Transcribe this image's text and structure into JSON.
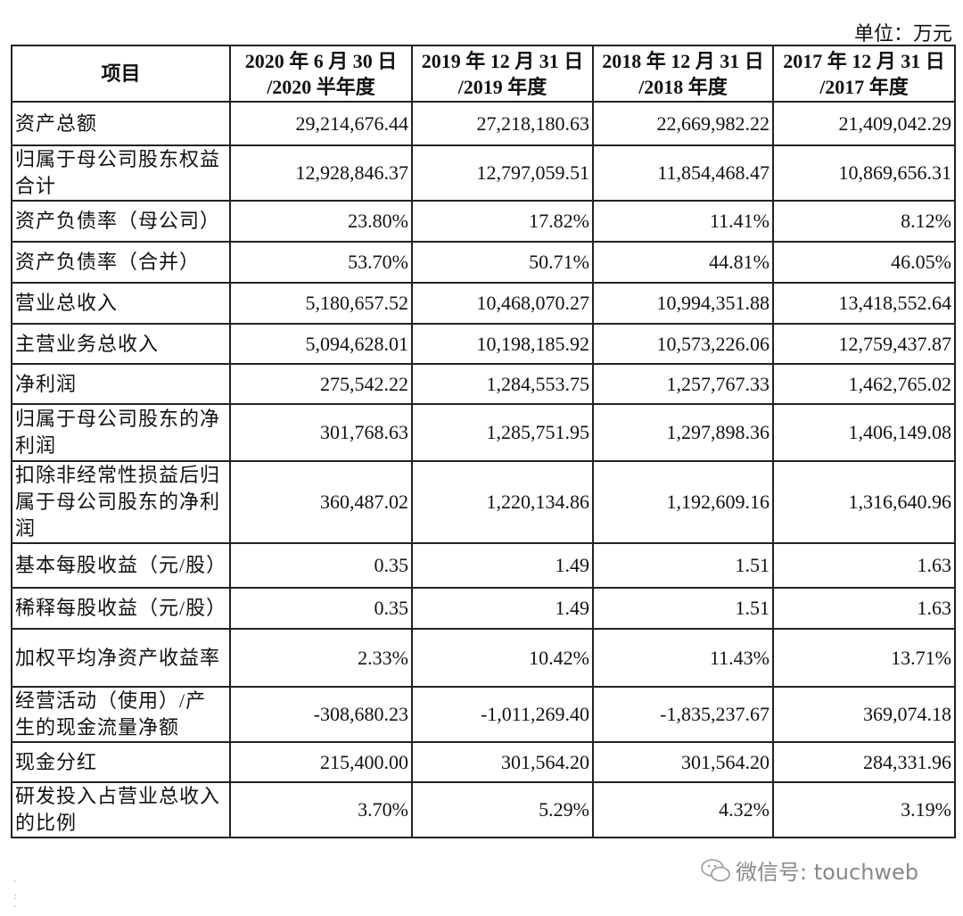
{
  "unit": "单位：万元",
  "header": [
    "项目",
    "2020 年 6 月 30 日 /2020 半年度",
    "2019 年 12 月 31 日 /2019 年度",
    "2018 年 12 月 31 日 /2018 年度",
    "2017 年 12 月 31 日 /2017 年度"
  ],
  "header_lines": [
    [
      "项目"
    ],
    [
      "2020 年 6 月 30 日",
      "/2020 半年度"
    ],
    [
      "2019 年 12 月 31 日",
      "/2019 年度"
    ],
    [
      "2018 年 12 月 31 日",
      "/2018 年度"
    ],
    [
      "2017 年 12 月 31 日",
      "/2017 年度"
    ]
  ],
  "rows": [
    {
      "label": "资产总额",
      "values": [
        "29,214,676.44",
        "27,218,180.63",
        "22,669,982.22",
        "21,409,042.29"
      ],
      "h": 51
    },
    {
      "label": "归属于母公司股东权益合计",
      "values": [
        "12,928,846.37",
        "12,797,059.51",
        "11,854,468.47",
        "10,869,656.31"
      ],
      "h": 60
    },
    {
      "label": "资产负债率（母公司）",
      "values": [
        "23.80%",
        "17.82%",
        "11.41%",
        "8.12%"
      ],
      "h": 48
    },
    {
      "label": "资产负债率（合并）",
      "values": [
        "53.70%",
        "50.71%",
        "44.81%",
        "46.05%"
      ],
      "h": 48
    },
    {
      "label": "营业总收入",
      "values": [
        "5,180,657.52",
        "10,468,070.27",
        "10,994,351.88",
        "13,418,552.64"
      ],
      "h": 48
    },
    {
      "label": "主营业务总收入",
      "values": [
        "5,094,628.01",
        "10,198,185.92",
        "10,573,226.06",
        "12,759,437.87"
      ],
      "h": 47
    },
    {
      "label": "净利润",
      "values": [
        "275,542.22",
        "1,284,553.75",
        "1,257,767.33",
        "1,462,765.02"
      ],
      "h": 47
    },
    {
      "label": "归属于母公司股东的净利润",
      "values": [
        "301,768.63",
        "1,285,751.95",
        "1,297,898.36",
        "1,406,149.08"
      ],
      "h": 66
    },
    {
      "label": "扣除非经常性损益后归属于母公司股东的净利润",
      "values": [
        "360,487.02",
        "1,220,134.86",
        "1,192,609.16",
        "1,316,640.96"
      ],
      "h": 90
    },
    {
      "label": "基本每股收益（元/股）",
      "values": [
        "0.35",
        "1.49",
        "1.51",
        "1.63"
      ],
      "h": 52
    },
    {
      "label": "稀释每股收益（元/股）",
      "values": [
        "0.35",
        "1.49",
        "1.51",
        "1.63"
      ],
      "h": 48
    },
    {
      "label": "加权平均净资产收益率",
      "values": [
        "2.33%",
        "10.42%",
        "11.43%",
        "13.71%"
      ],
      "h": 67
    },
    {
      "label": "经营活动（使用）/产生的现金流量净额",
      "values": [
        "-308,680.23",
        "-1,011,269.40",
        "-1,835,237.67",
        "369,074.18"
      ],
      "h": 64
    },
    {
      "label": "现金分红",
      "values": [
        "215,400.00",
        "301,564.20",
        "301,564.20",
        "284,331.96"
      ],
      "h": 47
    },
    {
      "label": "研发投入占营业总收入的比例",
      "values": [
        "3.70%",
        "5.29%",
        "4.32%",
        "3.19%"
      ],
      "h": 62
    }
  ],
  "watermark": {
    "icon": "wechat-icon",
    "text": "微信号: touchweb"
  }
}
